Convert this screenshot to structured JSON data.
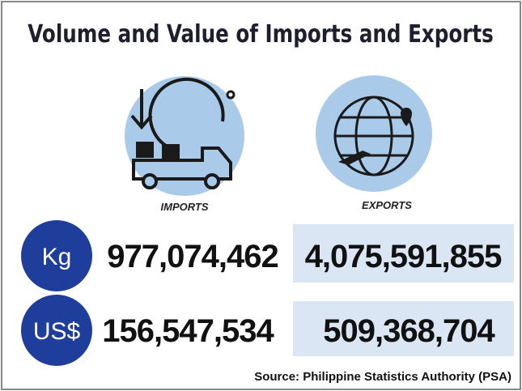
{
  "title": "Volume and Value of Imports and Exports",
  "columns": [
    "IMPORTS",
    "EXPORTS"
  ],
  "rows": [
    {
      "unit": "Kg",
      "values": [
        "977,074,462",
        "4,075,591,855"
      ]
    },
    {
      "unit": "US$",
      "values": [
        "156,547,534",
        "509,368,704"
      ]
    }
  ],
  "source": "Source: Philippine Statistics Authority (PSA)"
}
